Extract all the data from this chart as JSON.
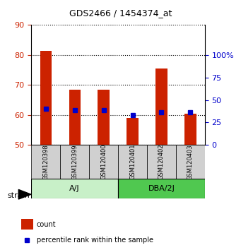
{
  "title": "GDS2466 / 1454374_at",
  "samples": [
    "GSM120398",
    "GSM120399",
    "GSM120400",
    "GSM120401",
    "GSM120402",
    "GSM120403"
  ],
  "count_values": [
    81.5,
    68.5,
    68.5,
    59.0,
    75.5,
    60.5
  ],
  "percentile_values": [
    62.0,
    61.5,
    61.5,
    60.0,
    61.0,
    61.0
  ],
  "groups": [
    {
      "label": "A/J",
      "samples": [
        0,
        1,
        2
      ],
      "color": "#c8f0c8"
    },
    {
      "label": "DBA/2J",
      "samples": [
        3,
        4,
        5
      ],
      "color": "#50c850"
    }
  ],
  "ylim": [
    50,
    90
  ],
  "yticks_left": [
    50,
    60,
    70,
    80,
    90
  ],
  "right_axis_values": [
    0,
    25,
    50,
    75,
    100
  ],
  "right_axis_positions": [
    50,
    57.5,
    65,
    72.5,
    80
  ],
  "count_color": "#cc2200",
  "percentile_color": "#0000cc",
  "bar_base": 50,
  "bar_width": 0.4,
  "legend_count": "count",
  "legend_percentile": "percentile rank within the sample",
  "tick_label_color_left": "#cc2200",
  "tick_label_color_right": "#0000cc",
  "sample_box_color": "#d0d0d0"
}
